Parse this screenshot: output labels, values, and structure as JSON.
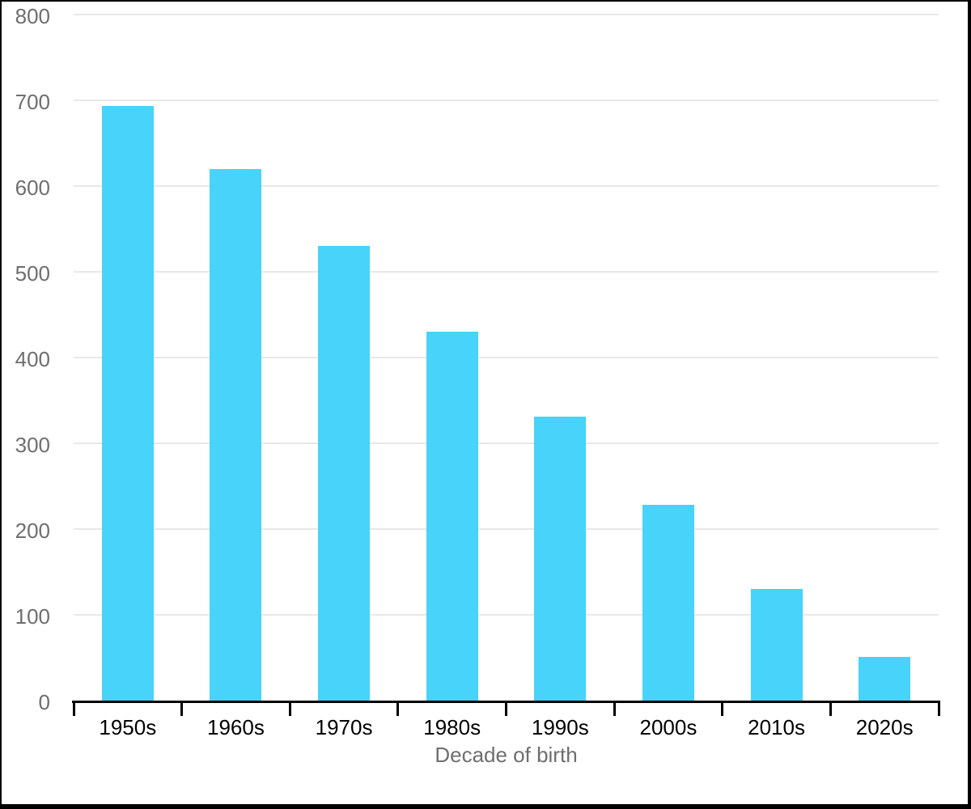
{
  "chart_data": {
    "type": "bar",
    "categories": [
      "1950s",
      "1960s",
      "1970s",
      "1980s",
      "1990s",
      "2000s",
      "2010s",
      "2020s"
    ],
    "values": [
      693,
      620,
      530,
      430,
      331,
      228,
      130,
      51
    ],
    "title": "",
    "xlabel": "Decade of birth",
    "ylabel": "",
    "ylim": [
      0,
      800
    ],
    "yticks": [
      0,
      100,
      200,
      300,
      400,
      500,
      600,
      700,
      800
    ],
    "grid": true,
    "legend": "none",
    "bar_color": "#47d3fa",
    "gridline_color": "#e8e8e8",
    "axis_color": "#000000",
    "y_tick_label_color": "#6e6e6e",
    "x_tick_label_color": "#000000",
    "xlabel_color": "#6e6e6e"
  }
}
